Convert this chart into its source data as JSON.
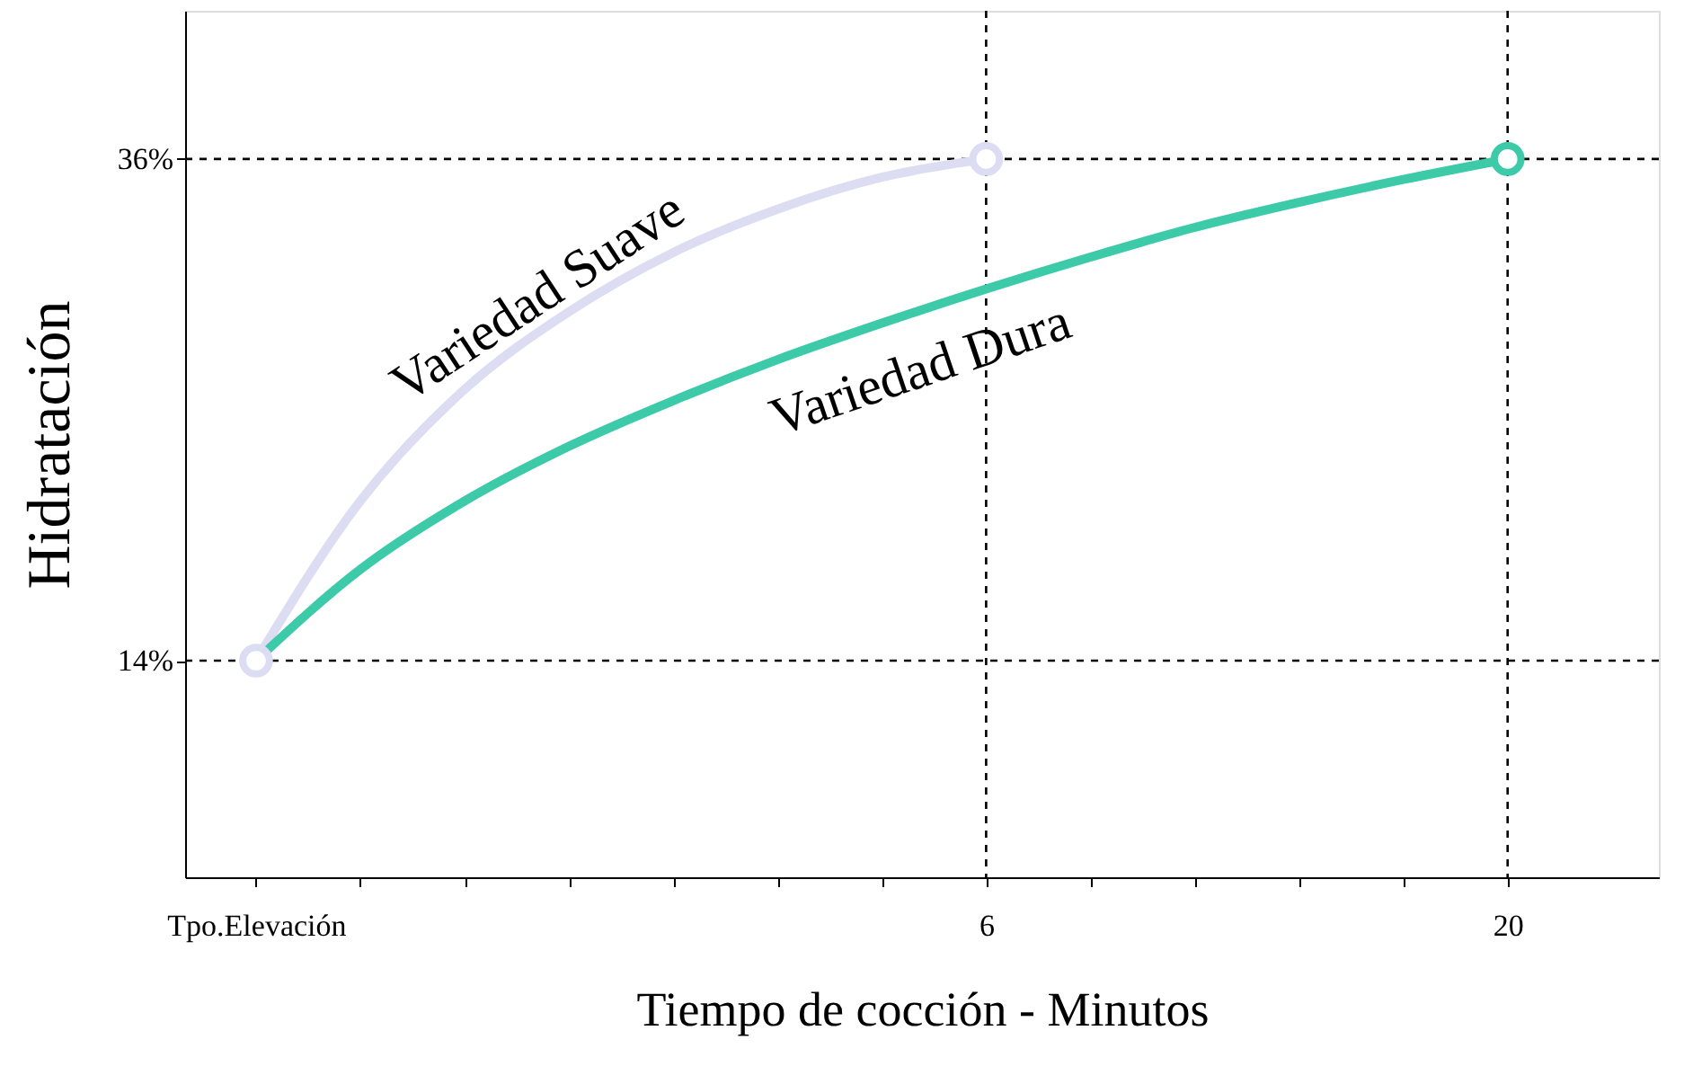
{
  "chart_data": {
    "type": "line",
    "xlabel": "Tiempo de cocción - Minutos",
    "ylabel": "Hidratación",
    "categories": [
      "Tpo.Elevación",
      null,
      null,
      null,
      null,
      null,
      null,
      "6",
      null,
      null,
      null,
      null,
      "20"
    ],
    "ylim": [
      4.5,
      42.5
    ],
    "yticks": [
      {
        "value": 14,
        "label": "14%"
      },
      {
        "value": 36,
        "label": "36%"
      }
    ],
    "line_style": "solid",
    "series": [
      {
        "name": "Variedad Suave",
        "color": "#dcdcf2",
        "values": [
          14,
          21.0,
          25.9,
          29.3,
          31.9,
          33.8,
          35.2,
          36,
          null,
          null,
          null,
          null,
          null
        ]
      },
      {
        "name": "Variedad Dura",
        "color": "#3ccaa8",
        "values": [
          14,
          18.0,
          21.0,
          23.4,
          25.4,
          27.2,
          28.8,
          30.3,
          31.7,
          33.0,
          34.1,
          35.1,
          36
        ]
      },
      {
        "type": "scatter",
        "marker": "circle",
        "x": [
          "Tpo.Elevación",
          "6",
          "20"
        ],
        "values": [
          14,
          36,
          36
        ],
        "colors": [
          "#dcdcf2",
          "#dcdcf2",
          "#3ccaa8"
        ]
      }
    ],
    "ref_lines": [
      {
        "axis": "y",
        "value": 36,
        "color": "#000000",
        "line_style": "dashed"
      },
      {
        "axis": "y",
        "value": 14,
        "color": "#000000",
        "line_style": "dashed"
      },
      {
        "axis": "x",
        "value": "6",
        "color": "#000000",
        "line_style": "dashed"
      },
      {
        "axis": "x",
        "value": "20",
        "color": "#000000",
        "line_style": "dashed"
      }
    ]
  }
}
